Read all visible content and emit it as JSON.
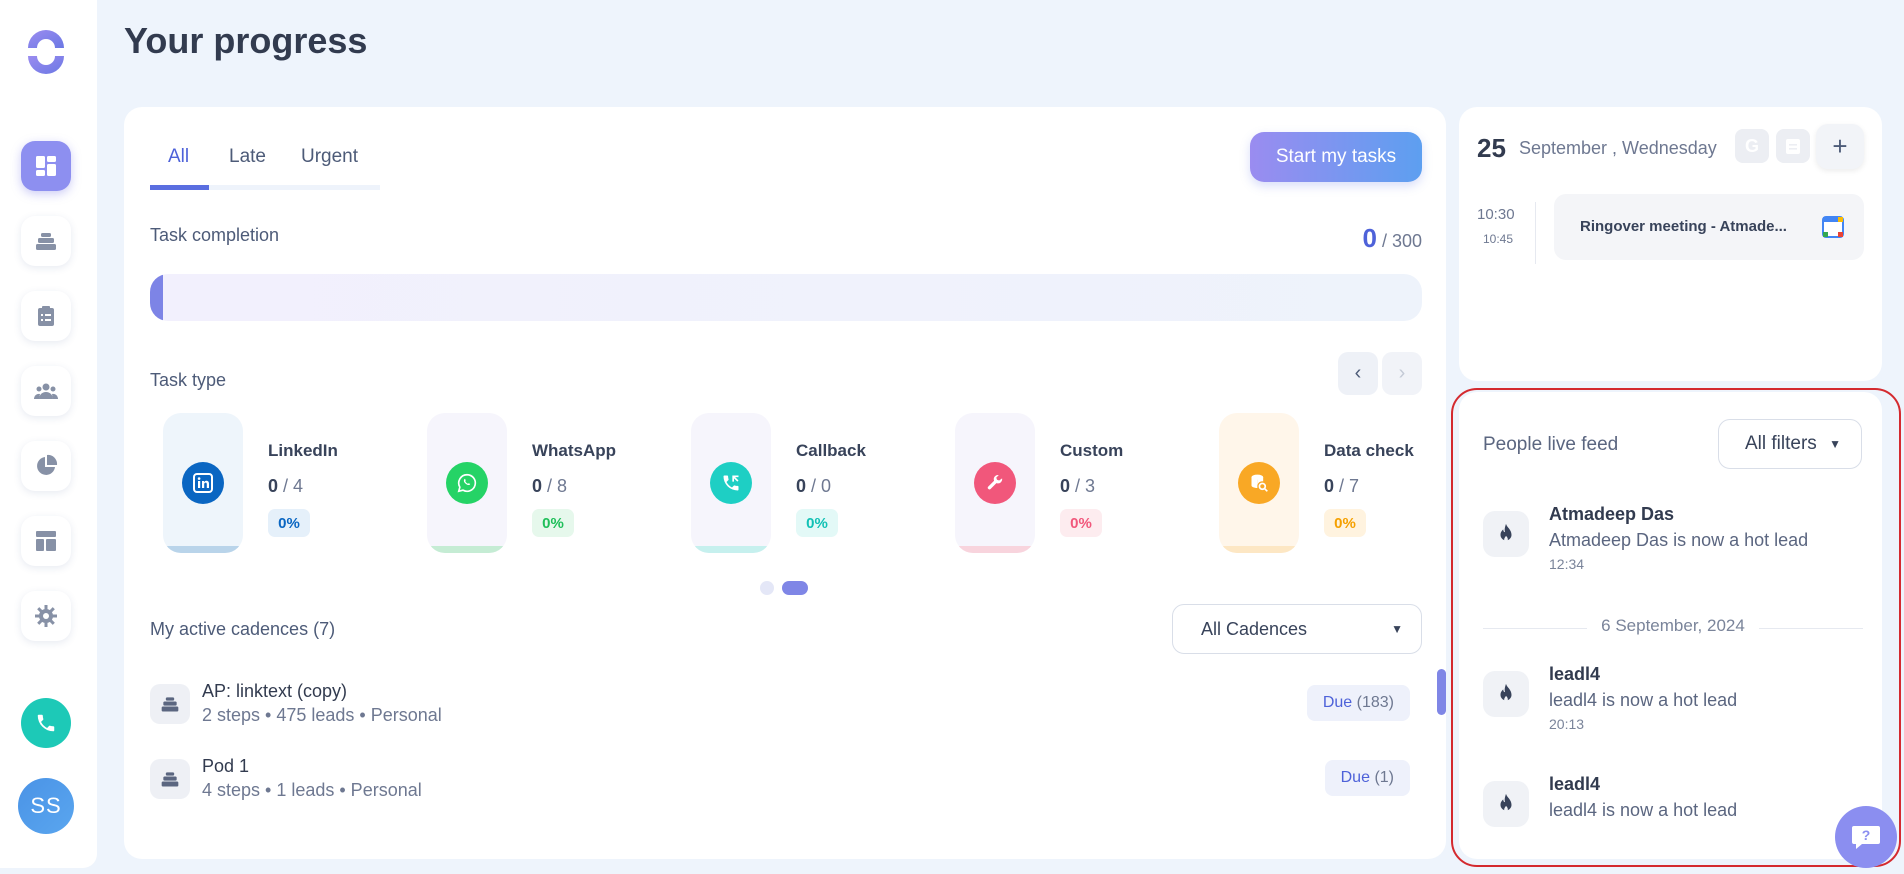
{
  "page": {
    "title": "Your progress"
  },
  "sidebar": {
    "items": [
      {
        "icon": "dashboard-icon"
      },
      {
        "icon": "cadences-icon"
      },
      {
        "icon": "tasks-clipboard-icon"
      },
      {
        "icon": "people-icon"
      },
      {
        "icon": "analytics-pie-icon"
      },
      {
        "icon": "templates-icon"
      },
      {
        "icon": "settings-gear-icon"
      }
    ],
    "avatar_initials": "SS"
  },
  "tabs": [
    {
      "label": "All"
    },
    {
      "label": "Late"
    },
    {
      "label": "Urgent"
    }
  ],
  "start_button": "Start my tasks",
  "completion": {
    "label": "Task completion",
    "done": "0",
    "total": "/ 300",
    "progress_fraction": 0
  },
  "task_type_label": "Task type",
  "task_types": [
    {
      "name": "LinkedIn",
      "done": "0",
      "total": "/ 4",
      "percent": "0%",
      "color": "#0a66c2"
    },
    {
      "name": "WhatsApp",
      "done": "0",
      "total": "/ 8",
      "percent": "0%",
      "color": "#25d366"
    },
    {
      "name": "Callback",
      "done": "0",
      "total": "/ 0",
      "percent": "0%",
      "color": "#1ecfc4"
    },
    {
      "name": "Custom",
      "done": "0",
      "total": "/ 3",
      "percent": "0%",
      "color": "#f1577b"
    },
    {
      "name": "Data check",
      "done": "0",
      "total": "/ 7",
      "percent": "0%",
      "color": "#f9a825"
    }
  ],
  "cadences": {
    "label": "My active cadences (7)",
    "filter": "All Cadences",
    "items": [
      {
        "name": "AP: linktext (copy)",
        "meta": "2 steps • 475 leads • Personal",
        "due_label": "Due",
        "due_count": "(183)"
      },
      {
        "name": "Pod 1",
        "meta": "4 steps • 1 leads • Personal",
        "due_label": "Due",
        "due_count": "(1)"
      }
    ]
  },
  "calendar": {
    "day": "25",
    "date": "September , Wednesday",
    "event": {
      "start": "10:30",
      "end": "10:45",
      "title": "Ringover meeting - Atmade..."
    }
  },
  "feed": {
    "title": "People live feed",
    "filter": "All filters",
    "items": [
      {
        "name": "Atmadeep Das",
        "message": "Atmadeep Das is now a hot lead",
        "time": "12:34"
      },
      {
        "name": "leadl4",
        "message": "leadl4 is now a hot lead",
        "time": "20:13"
      },
      {
        "name": "leadl4",
        "message": "leadl4 is now a hot lead",
        "time": ""
      }
    ],
    "date_separator": "6 September, 2024"
  }
}
